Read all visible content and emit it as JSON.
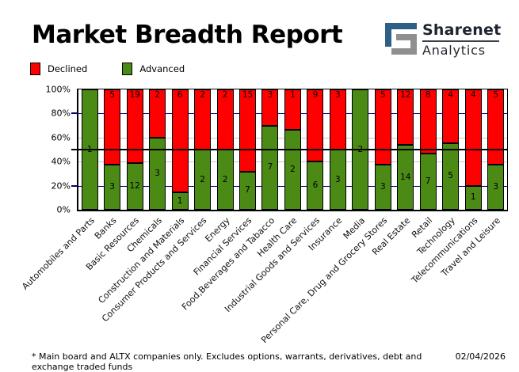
{
  "header": {
    "title": "Market Breadth Report",
    "logo": {
      "brand": "Sharenet",
      "sub": "Analytics",
      "blue": "#2d5f87",
      "gray": "#8f8f8f"
    }
  },
  "legend": {
    "items": [
      {
        "label": "Declined",
        "color": "#ff0000"
      },
      {
        "label": "Advanced",
        "color": "#4a8a15"
      }
    ]
  },
  "chart_data": {
    "type": "bar",
    "stacked": true,
    "normalized": "percent",
    "title": "Market Breadth Report",
    "categories": [
      "Automobiles and Parts",
      "Banks",
      "Basic Resources",
      "Chemicals",
      "Construction and Materials",
      "Consumer Products and Services",
      "Energy",
      "Financial Services",
      "Food,Beverages and Tabacco",
      "Health Care",
      "Industrial Goods and Services",
      "Insurance",
      "Media",
      "Personal Care, Drug and Grocery Stores",
      "Real Estate",
      "Retail",
      "Technology",
      "Telecommunications",
      "Travel and Leisure"
    ],
    "series": [
      {
        "name": "Declined",
        "color": "#ff0000",
        "values": [
          0,
          5,
          19,
          2,
          6,
          2,
          2,
          15,
          3,
          1,
          9,
          3,
          0,
          5,
          12,
          8,
          4,
          4,
          5
        ]
      },
      {
        "name": "Advanced",
        "color": "#4a8a15",
        "values": [
          1,
          3,
          12,
          3,
          1,
          2,
          2,
          7,
          7,
          2,
          6,
          3,
          2,
          3,
          14,
          7,
          5,
          1,
          3
        ]
      }
    ],
    "y_ticks": [
      "100%",
      "80%",
      "60%",
      "40%",
      "20%",
      "0%"
    ],
    "ylim": [
      0,
      100
    ],
    "reference_line_pct": 50,
    "gridlines": {
      "navy_pct": [
        20,
        80
      ],
      "gray_pct": [
        40,
        60
      ]
    },
    "style": {
      "navy_gridline": "#000080",
      "gray_gridline": "#c8c8c8",
      "ref_line": "#000000",
      "label_color": "#000000"
    },
    "legend_position": "top-left",
    "grid": true
  },
  "footer": {
    "note": "* Main board and ALTX companies only. Excludes options, warrants, derivatives, debt and exchange traded funds",
    "date": "02/04/2026"
  }
}
